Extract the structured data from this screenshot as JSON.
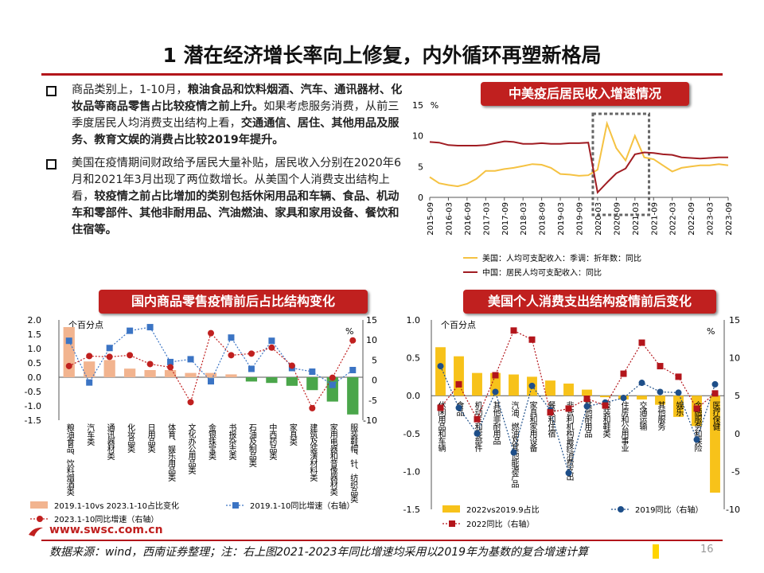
{
  "title": "1 潜在经济增长率向上修复，内外循环再塑新格局",
  "bullets": [
    {
      "segments": [
        {
          "t": "商品类别上，1-10月，",
          "b": false
        },
        {
          "t": "粮油食品和饮料烟酒、汽车、通讯器材、化妆品等商品零售占比较疫情之前上升。",
          "b": true
        },
        {
          "t": "如果考虑服务消费，从前三季度居民人均消费支出结构上看，",
          "b": false
        },
        {
          "t": "交通通信、居住、其他用品及服务、教育文娱的消费占比较2019年提升。",
          "b": true
        }
      ]
    },
    {
      "segments": [
        {
          "t": "美国在疫情期间财政给予居民大量补贴，居民收入分别在2020年6月和2021年3月出现了两位数增长。从美国个人消费支出结构上看，",
          "b": false
        },
        {
          "t": "较疫情之前占比增加的类别包括休闲用品和车辆、食品、机动车和零部件、其他非耐用品、汽油燃油、家具和家用设备、餐饮和住宿等。",
          "b": true
        }
      ]
    }
  ],
  "badges": {
    "income": "中美疫后居民收入增速情况",
    "china_retail": "国内商品零售疫情前后占比结构变化",
    "us_pce": "美国个人消费支出结构疫情前后变化"
  },
  "colors": {
    "accent": "#c0201f",
    "us_line": "#f5c242",
    "cn_line": "#a01c22",
    "bar_peach": "#f2b48f",
    "bar_green": "#4aa64a",
    "bar_gold": "#f7c21a",
    "dot_blue": "#3b74c4",
    "navy": "#1d4e89"
  },
  "chart_data": [
    {
      "id": "income",
      "type": "line",
      "ylabel": "%",
      "ylim": [
        0,
        15
      ],
      "yticks": [
        "0",
        "5",
        "10",
        "15"
      ],
      "x_ticks": [
        "2015-09",
        "2016-03",
        "2016-09",
        "2017-03",
        "2017-09",
        "2018-03",
        "2018-09",
        "2019-03",
        "2019-09",
        "2020-03",
        "2020-09",
        "2021-03",
        "2021-09",
        "2022-03",
        "2022-09",
        "2023-03",
        "2023-09"
      ],
      "x": [
        "2015-09",
        "2015-12",
        "2016-03",
        "2016-06",
        "2016-09",
        "2016-12",
        "2017-03",
        "2017-06",
        "2017-09",
        "2017-12",
        "2018-03",
        "2018-06",
        "2018-09",
        "2018-12",
        "2019-03",
        "2019-06",
        "2019-09",
        "2019-12",
        "2020-03",
        "2020-06",
        "2020-09",
        "2020-12",
        "2021-03",
        "2021-06",
        "2021-09",
        "2021-12",
        "2022-03",
        "2022-06",
        "2022-09",
        "2022-12",
        "2023-03",
        "2023-06",
        "2023-09"
      ],
      "series": [
        {
          "name": "美国：人均可支配收入：季调：折年数：同比",
          "color": "#f5c242",
          "values": [
            3.3,
            2.3,
            2.0,
            1.8,
            2.2,
            3.0,
            4.3,
            4.3,
            4.6,
            4.8,
            5.1,
            5.4,
            5.3,
            4.8,
            3.8,
            3.7,
            3.5,
            3.6,
            4.5,
            12.0,
            8.0,
            6.0,
            10.0,
            6.5,
            6.2,
            5.2,
            4.2,
            4.8,
            5.0,
            5.2,
            5.2,
            5.4,
            5.2
          ]
        },
        {
          "name": "中国：居民人均可支配收入：同比",
          "color": "#a01c22",
          "values": [
            9.0,
            8.9,
            8.5,
            8.4,
            8.4,
            8.4,
            8.5,
            8.8,
            9.1,
            9.0,
            8.7,
            8.7,
            8.8,
            8.7,
            8.7,
            8.8,
            8.8,
            8.9,
            0.8,
            2.4,
            3.9,
            4.7,
            7.0,
            7.3,
            7.2,
            7.0,
            6.9,
            6.5,
            6.4,
            6.3,
            6.4,
            6.5,
            6.5
          ]
        }
      ],
      "highlight_range": [
        "2020-03",
        "2021-06"
      ]
    },
    {
      "id": "china_retail",
      "type": "bar",
      "ylabel_left": "个百分点",
      "ylabel_right": "%",
      "ylim": [
        -1.5,
        2.0
      ],
      "yticks_left": [
        "2.0",
        "1.5",
        "1.0",
        "0.5",
        "0.0",
        "-0.5",
        "-1.0",
        "-1.5"
      ],
      "ylim_right": [
        -10,
        15
      ],
      "yticks_right": [
        "15",
        "10",
        "5",
        "0",
        "-5",
        "-10"
      ],
      "categories": [
        "粮油食品、饮料烟酒类",
        "汽车类",
        "通讯器材类",
        "化妆品类",
        "日用品类",
        "体育、娱乐用品类",
        "文化办公用品类",
        "金银珠宝类",
        "书报杂志类",
        "石油及制品类",
        "中西药品类",
        "家具类",
        "建筑及装潢材料类",
        "家用电器和音像器材类",
        "服装鞋帽、针、纺织品类"
      ],
      "series": [
        {
          "name": "2019.1-10vs 2023.1-10占比变化",
          "type": "bar",
          "values": [
            1.75,
            0.55,
            0.6,
            0.3,
            0.25,
            0.25,
            0.15,
            0.15,
            0.1,
            -0.15,
            -0.2,
            -0.3,
            -0.45,
            -0.85,
            -1.3
          ]
        },
        {
          "name": "2019.1-10同比增速（右轴）",
          "type": "dots",
          "axis": "right",
          "values": [
            9.8,
            -0.6,
            8.0,
            12.3,
            13.2,
            4.5,
            5.2,
            -0.3,
            10.6,
            2.8,
            9.8,
            3.0,
            2.1,
            -1.2,
            2.5
          ]
        },
        {
          "name": "2023.1-10同比增速（右轴）",
          "type": "dots",
          "axis": "right",
          "values": [
            3.5,
            6.0,
            5.8,
            6.2,
            4.0,
            3.2,
            -5.5,
            11.7,
            6.2,
            6.6,
            8.1,
            3.6,
            -7.0,
            0.6,
            9.9
          ]
        }
      ]
    },
    {
      "id": "us_pce",
      "type": "bar",
      "ylabel_left": "个百分点",
      "ylabel_right": "%",
      "ylim": [
        -1.5,
        1.0
      ],
      "yticks_left": [
        "1.0",
        "0.5",
        "0.0",
        "-0.5",
        "-1.0",
        "-1.5"
      ],
      "ylim_right": [
        -10,
        15
      ],
      "yticks_right": [
        "15",
        "10",
        "5",
        "0",
        "-5",
        "-10"
      ],
      "categories": [
        "休闲用品和车辆",
        "食品",
        "机动车和零部件",
        "其他非耐用品",
        "汽油、燃油及其他能源产品",
        "家具和家用设备",
        "餐饮和住宿",
        "非营利机构最终消费支出",
        "其他耐用品",
        "服装和鞋类",
        "住房和公用事业",
        "交通运输",
        "其他服务",
        "娱乐",
        "金融服务和保险",
        "医疗保健"
      ],
      "series": [
        {
          "name": "2022vs2019.9占比",
          "type": "bar",
          "values": [
            0.64,
            0.52,
            0.3,
            0.3,
            0.28,
            0.25,
            0.2,
            0.16,
            0.08,
            -0.02,
            -0.05,
            -0.05,
            -0.12,
            -0.28,
            -0.4,
            -1.28
          ]
        },
        {
          "name": "2019同比（右轴）",
          "type": "dots",
          "axis": "right",
          "values": [
            8.9,
            3.4,
            0.0,
            5.5,
            -2.5,
            6.3,
            3.1,
            -5.2,
            3.6,
            4.1,
            4.7,
            6.7,
            5.5,
            5.4,
            -0.8,
            6.5
          ]
        },
        {
          "name": "2022同比（右轴）",
          "type": "dots",
          "axis": "right",
          "values": [
            3.4,
            6.5,
            1.9,
            7.7,
            13.6,
            12.4,
            2.8,
            3.3,
            4.6,
            3.7,
            7.9,
            12.0,
            8.9,
            7.5,
            3.3,
            5.3
          ]
        }
      ]
    }
  ],
  "website": "www.swsc.com.cn",
  "source": "数据来源：wind，西南证券整理；注：右上图2021-2023年同比增速均采用以2019年为基数的复合增速计算",
  "page_number": "16"
}
